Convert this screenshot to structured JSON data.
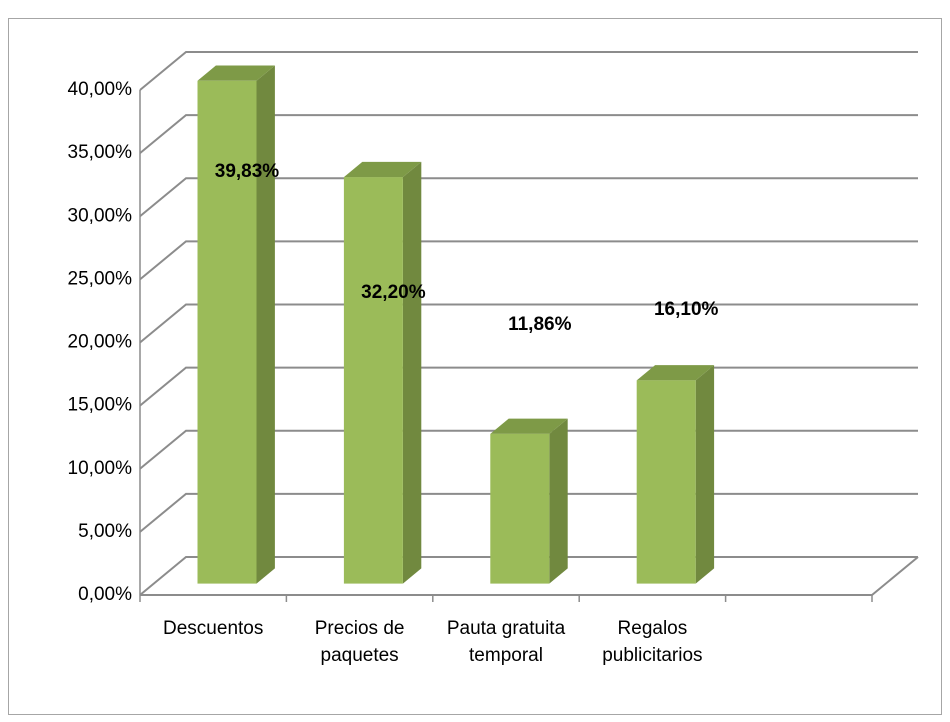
{
  "chart_data": {
    "type": "bar3d",
    "categories": [
      "Descuentos",
      "Precios de paquetes",
      "Pauta gratuita temporal",
      "Regalos publicitarios"
    ],
    "values": [
      39.83,
      32.2,
      11.86,
      16.1
    ],
    "value_labels": [
      "39,83%",
      "32,20%",
      "11,86%",
      "16,10%"
    ],
    "color": "#9bbb59",
    "ylim": [
      0,
      40
    ],
    "yticks": [
      {
        "value": 0,
        "label": "0,00%"
      },
      {
        "value": 5,
        "label": "5,00%"
      },
      {
        "value": 10,
        "label": "10,00%"
      },
      {
        "value": 15,
        "label": "15,00%"
      },
      {
        "value": 20,
        "label": "20,00%"
      },
      {
        "value": 25,
        "label": "25,00%"
      },
      {
        "value": 30,
        "label": "30,00%"
      },
      {
        "value": 35,
        "label": "35,00%"
      },
      {
        "value": 40,
        "label": "40,00%"
      }
    ],
    "grid": true
  }
}
